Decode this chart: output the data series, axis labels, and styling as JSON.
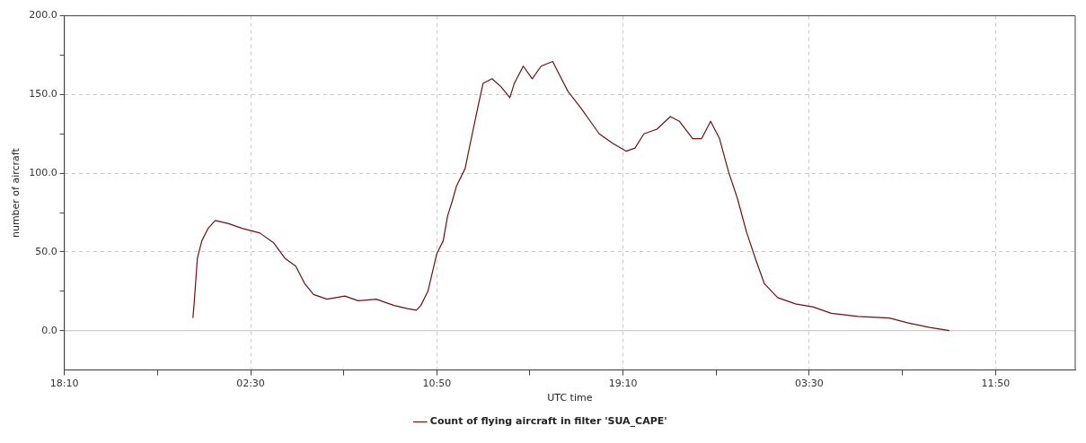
{
  "chart_data": {
    "type": "line",
    "xlabel": "UTC time",
    "ylabel": "number of aircraft",
    "xlim": [
      "--01-01T18:10",
      "--01-03T15:24"
    ],
    "ylim": [
      -25,
      200
    ],
    "xticks": [
      {
        "value": "--01-01T18:10",
        "label": "18:10"
      },
      {
        "value": "--01-01T22:20",
        "label": null
      },
      {
        "value": "--01-02T02:30",
        "label": "02:30"
      },
      {
        "value": "--01-02T06:40",
        "label": null
      },
      {
        "value": "--01-02T10:50",
        "label": "10:50"
      },
      {
        "value": "--01-02T15:00",
        "label": null
      },
      {
        "value": "--01-02T19:10",
        "label": "19:10"
      },
      {
        "value": "--01-02T23:20",
        "label": null
      },
      {
        "value": "--01-03T03:30",
        "label": "03:30"
      },
      {
        "value": "--01-03T07:40",
        "label": null
      },
      {
        "value": "--01-03T11:50",
        "label": "11:50"
      }
    ],
    "yticks": [
      {
        "value": 0,
        "label": "0.0"
      },
      {
        "value": 25,
        "label": null
      },
      {
        "value": 50,
        "label": "50.0"
      },
      {
        "value": 75,
        "label": null
      },
      {
        "value": 100,
        "label": "100.0"
      },
      {
        "value": 125,
        "label": null
      },
      {
        "value": 150,
        "label": "150.0"
      },
      {
        "value": 175,
        "label": null
      },
      {
        "value": 200,
        "label": "200.0"
      }
    ],
    "grid": true,
    "legend": "bottom",
    "marker": "none",
    "line_style": "solid",
    "ref_lines": [
      {
        "axis": "y",
        "value": 0,
        "color": "#c0c0c0",
        "line_style": "solid"
      }
    ],
    "series": [
      {
        "name": "Count of flying aircraft in filter 'SUA_CAPE'",
        "color": "#6e1010",
        "x": [
          "--01-01T23:55",
          "--01-01T23:58",
          "--01-02T00:07",
          "--01-02T00:19",
          "--01-02T00:36",
          "--01-02T00:55",
          "--01-02T01:31",
          "--01-02T02:07",
          "--01-02T02:55",
          "--01-02T03:31",
          "--01-02T04:02",
          "--01-02T04:31",
          "--01-02T04:55",
          "--01-02T05:19",
          "--01-02T05:55",
          "--01-02T06:43",
          "--01-02T07:19",
          "--01-02T08:07",
          "--01-02T08:55",
          "--01-02T09:31",
          "--01-02T09:55",
          "--01-02T10:07",
          "--01-02T10:26",
          "--01-02T10:50",
          "--01-02T11:07",
          "--01-02T11:19",
          "--01-02T11:31",
          "--01-02T11:43",
          "--01-02T12:06",
          "--01-02T12:18",
          "--01-02T12:42",
          "--01-02T12:54",
          "--01-02T13:18",
          "--01-02T13:42",
          "--01-02T14:06",
          "--01-02T14:18",
          "--01-02T14:42",
          "--01-02T15:06",
          "--01-02T15:30",
          "--01-02T16:01",
          "--01-02T16:18",
          "--01-02T16:42",
          "--01-02T17:18",
          "--01-02T17:42",
          "--01-02T18:06",
          "--01-02T18:42",
          "--01-02T19:18",
          "--01-02T19:42",
          "--01-02T20:06",
          "--01-02T20:41",
          "--01-02T21:17",
          "--01-02T21:41",
          "--01-02T22:17",
          "--01-02T22:41",
          "--01-02T23:05",
          "--01-02T23:29",
          "--01-02T23:53",
          "--01-03T00:17",
          "--01-03T00:41",
          "--01-03T01:05",
          "--01-03T01:29",
          "--01-03T02:05",
          "--01-03T02:53",
          "--01-03T03:41",
          "--01-03T04:29",
          "--01-03T05:41",
          "--01-03T07:05",
          "--01-03T07:53",
          "--01-03T08:53",
          "--01-03T09:46"
        ],
        "values": [
          8,
          16,
          46,
          57,
          65,
          70,
          68,
          65,
          62,
          56,
          46,
          41,
          30,
          23,
          20,
          22,
          19,
          20,
          16,
          14,
          13,
          16,
          25,
          49,
          57,
          73,
          82,
          92,
          103,
          117,
          144,
          157,
          160,
          155,
          148,
          157,
          168,
          160,
          168,
          171,
          163,
          152,
          141,
          133,
          125,
          119,
          114,
          116,
          125,
          128,
          136,
          133,
          122,
          122,
          133,
          122,
          101,
          84,
          63,
          46,
          30,
          21,
          17,
          15,
          11,
          9,
          8,
          5,
          2,
          0
        ]
      }
    ]
  }
}
